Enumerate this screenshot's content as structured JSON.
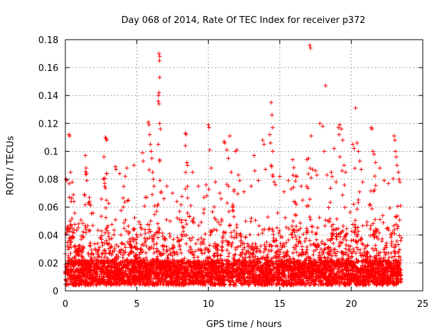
{
  "chart_data": {
    "type": "scatter",
    "title": "Day 068 of 2014, Rate Of TEC Index for receiver p372",
    "xlabel": "GPS time / hours",
    "ylabel": "ROTI / TECUs",
    "xlim": [
      0,
      25
    ],
    "ylim": [
      0,
      0.18
    ],
    "xticks": [
      0,
      5,
      10,
      15,
      20,
      25
    ],
    "yticks": [
      0,
      0.02,
      0.04,
      0.06,
      0.08,
      0.1,
      0.12,
      0.14,
      0.16,
      0.18
    ],
    "xtick_labels": [
      "0",
      "5",
      "10",
      "15",
      "20",
      "25"
    ],
    "ytick_labels": [
      "0",
      "0.02",
      "0.04",
      "0.06",
      "0.08",
      "0.1",
      "0.12",
      "0.14",
      "0.16",
      "0.18"
    ],
    "grid": true,
    "marker": "+",
    "marker_color": "#ff0000",
    "data_range_hours": [
      0,
      23.5
    ],
    "series": [
      {
        "name": "ROTI",
        "points": [
          [
            0.05,
            0.08
          ],
          [
            0.1,
            0.079
          ],
          [
            0.25,
            0.112
          ],
          [
            0.3,
            0.111
          ],
          [
            0.4,
            0.064
          ],
          [
            0.6,
            0.064
          ],
          [
            1.4,
            0.097
          ],
          [
            1.45,
            0.088
          ],
          [
            1.5,
            0.079
          ],
          [
            1.7,
            0.064
          ],
          [
            2.8,
            0.11
          ],
          [
            2.85,
            0.109
          ],
          [
            2.9,
            0.108
          ],
          [
            2.7,
            0.096
          ],
          [
            2.75,
            0.075
          ],
          [
            3.5,
            0.089
          ],
          [
            3.55,
            0.087
          ],
          [
            3.8,
            0.084
          ],
          [
            4.3,
            0.088
          ],
          [
            4.8,
            0.09
          ],
          [
            5.4,
            0.099
          ],
          [
            5.45,
            0.093
          ],
          [
            5.6,
            0.067
          ],
          [
            5.8,
            0.121
          ],
          [
            5.85,
            0.119
          ],
          [
            5.9,
            0.112
          ],
          [
            5.95,
            0.105
          ],
          [
            6.0,
            0.1
          ],
          [
            6.05,
            0.095
          ],
          [
            6.1,
            0.085
          ],
          [
            6.15,
            0.08
          ],
          [
            6.2,
            0.075
          ],
          [
            6.55,
            0.17
          ],
          [
            6.6,
            0.168
          ],
          [
            6.58,
            0.165
          ],
          [
            6.6,
            0.153
          ],
          [
            6.55,
            0.142
          ],
          [
            6.52,
            0.14
          ],
          [
            6.5,
            0.136
          ],
          [
            6.55,
            0.134
          ],
          [
            6.6,
            0.12
          ],
          [
            6.65,
            0.116
          ],
          [
            6.5,
            0.105
          ],
          [
            6.6,
            0.093
          ],
          [
            6.7,
            0.071
          ],
          [
            6.9,
            0.066
          ],
          [
            7.1,
            0.075
          ],
          [
            7.5,
            0.07
          ],
          [
            7.8,
            0.064
          ],
          [
            8.4,
            0.113
          ],
          [
            8.45,
            0.112
          ],
          [
            8.4,
            0.104
          ],
          [
            8.5,
            0.092
          ],
          [
            8.55,
            0.09
          ],
          [
            8.9,
            0.085
          ],
          [
            9.3,
            0.075
          ],
          [
            9.7,
            0.067
          ],
          [
            10.0,
            0.119
          ],
          [
            10.05,
            0.117
          ],
          [
            10.1,
            0.101
          ],
          [
            10.2,
            0.088
          ],
          [
            10.5,
            0.078
          ],
          [
            10.8,
            0.07
          ],
          [
            10.9,
            0.066
          ],
          [
            11.1,
            0.107
          ],
          [
            11.15,
            0.106
          ],
          [
            11.3,
            0.101
          ],
          [
            11.5,
            0.111
          ],
          [
            11.4,
            0.095
          ],
          [
            11.6,
            0.085
          ],
          [
            11.9,
            0.1
          ],
          [
            12.0,
            0.101
          ],
          [
            12.1,
            0.083
          ],
          [
            12.2,
            0.079
          ],
          [
            12.5,
            0.071
          ],
          [
            13.0,
            0.075
          ],
          [
            13.2,
            0.097
          ],
          [
            13.25,
            0.086
          ],
          [
            13.5,
            0.079
          ],
          [
            13.8,
            0.108
          ],
          [
            13.9,
            0.105
          ],
          [
            14.0,
            0.087
          ],
          [
            14.4,
            0.135
          ],
          [
            14.45,
            0.126
          ],
          [
            14.5,
            0.117
          ],
          [
            14.3,
            0.112
          ],
          [
            14.35,
            0.106
          ],
          [
            14.5,
            0.1
          ],
          [
            14.4,
            0.09
          ],
          [
            14.5,
            0.083
          ],
          [
            14.6,
            0.078
          ],
          [
            14.7,
            0.076
          ],
          [
            15.0,
            0.082
          ],
          [
            15.3,
            0.071
          ],
          [
            15.9,
            0.094
          ],
          [
            15.6,
            0.079
          ],
          [
            15.8,
            0.073
          ],
          [
            16.2,
            0.082
          ],
          [
            16.5,
            0.075
          ],
          [
            16.6,
            0.065
          ],
          [
            17.1,
            0.176
          ],
          [
            17.15,
            0.174
          ],
          [
            17.2,
            0.111
          ],
          [
            17.0,
            0.095
          ],
          [
            16.9,
            0.094
          ],
          [
            17.3,
            0.087
          ],
          [
            17.5,
            0.086
          ],
          [
            17.6,
            0.083
          ],
          [
            17.8,
            0.12
          ],
          [
            18.0,
            0.118
          ],
          [
            18.2,
            0.147
          ],
          [
            18.1,
            0.1
          ],
          [
            18.3,
            0.083
          ],
          [
            18.6,
            0.085
          ],
          [
            18.8,
            0.102
          ],
          [
            19.1,
            0.117
          ],
          [
            19.15,
            0.112
          ],
          [
            19.2,
            0.119
          ],
          [
            19.3,
            0.116
          ],
          [
            19.4,
            0.108
          ],
          [
            19.2,
            0.096
          ],
          [
            19.5,
            0.09
          ],
          [
            19.6,
            0.085
          ],
          [
            20.1,
            0.105
          ],
          [
            20.2,
            0.102
          ],
          [
            20.3,
            0.131
          ],
          [
            20.4,
            0.106
          ],
          [
            20.5,
            0.1
          ],
          [
            20.6,
            0.093
          ],
          [
            20.7,
            0.087
          ],
          [
            20.8,
            0.078
          ],
          [
            21.4,
            0.117
          ],
          [
            21.45,
            0.116
          ],
          [
            21.5,
            0.1
          ],
          [
            21.6,
            0.098
          ],
          [
            21.7,
            0.092
          ],
          [
            22.0,
            0.088
          ],
          [
            22.3,
            0.079
          ],
          [
            22.6,
            0.077
          ],
          [
            23.0,
            0.111
          ],
          [
            23.05,
            0.108
          ],
          [
            23.1,
            0.1
          ],
          [
            23.15,
            0.096
          ],
          [
            23.2,
            0.09
          ],
          [
            23.3,
            0.085
          ],
          [
            23.35,
            0.08
          ],
          [
            23.4,
            0.078
          ]
        ]
      }
    ]
  }
}
